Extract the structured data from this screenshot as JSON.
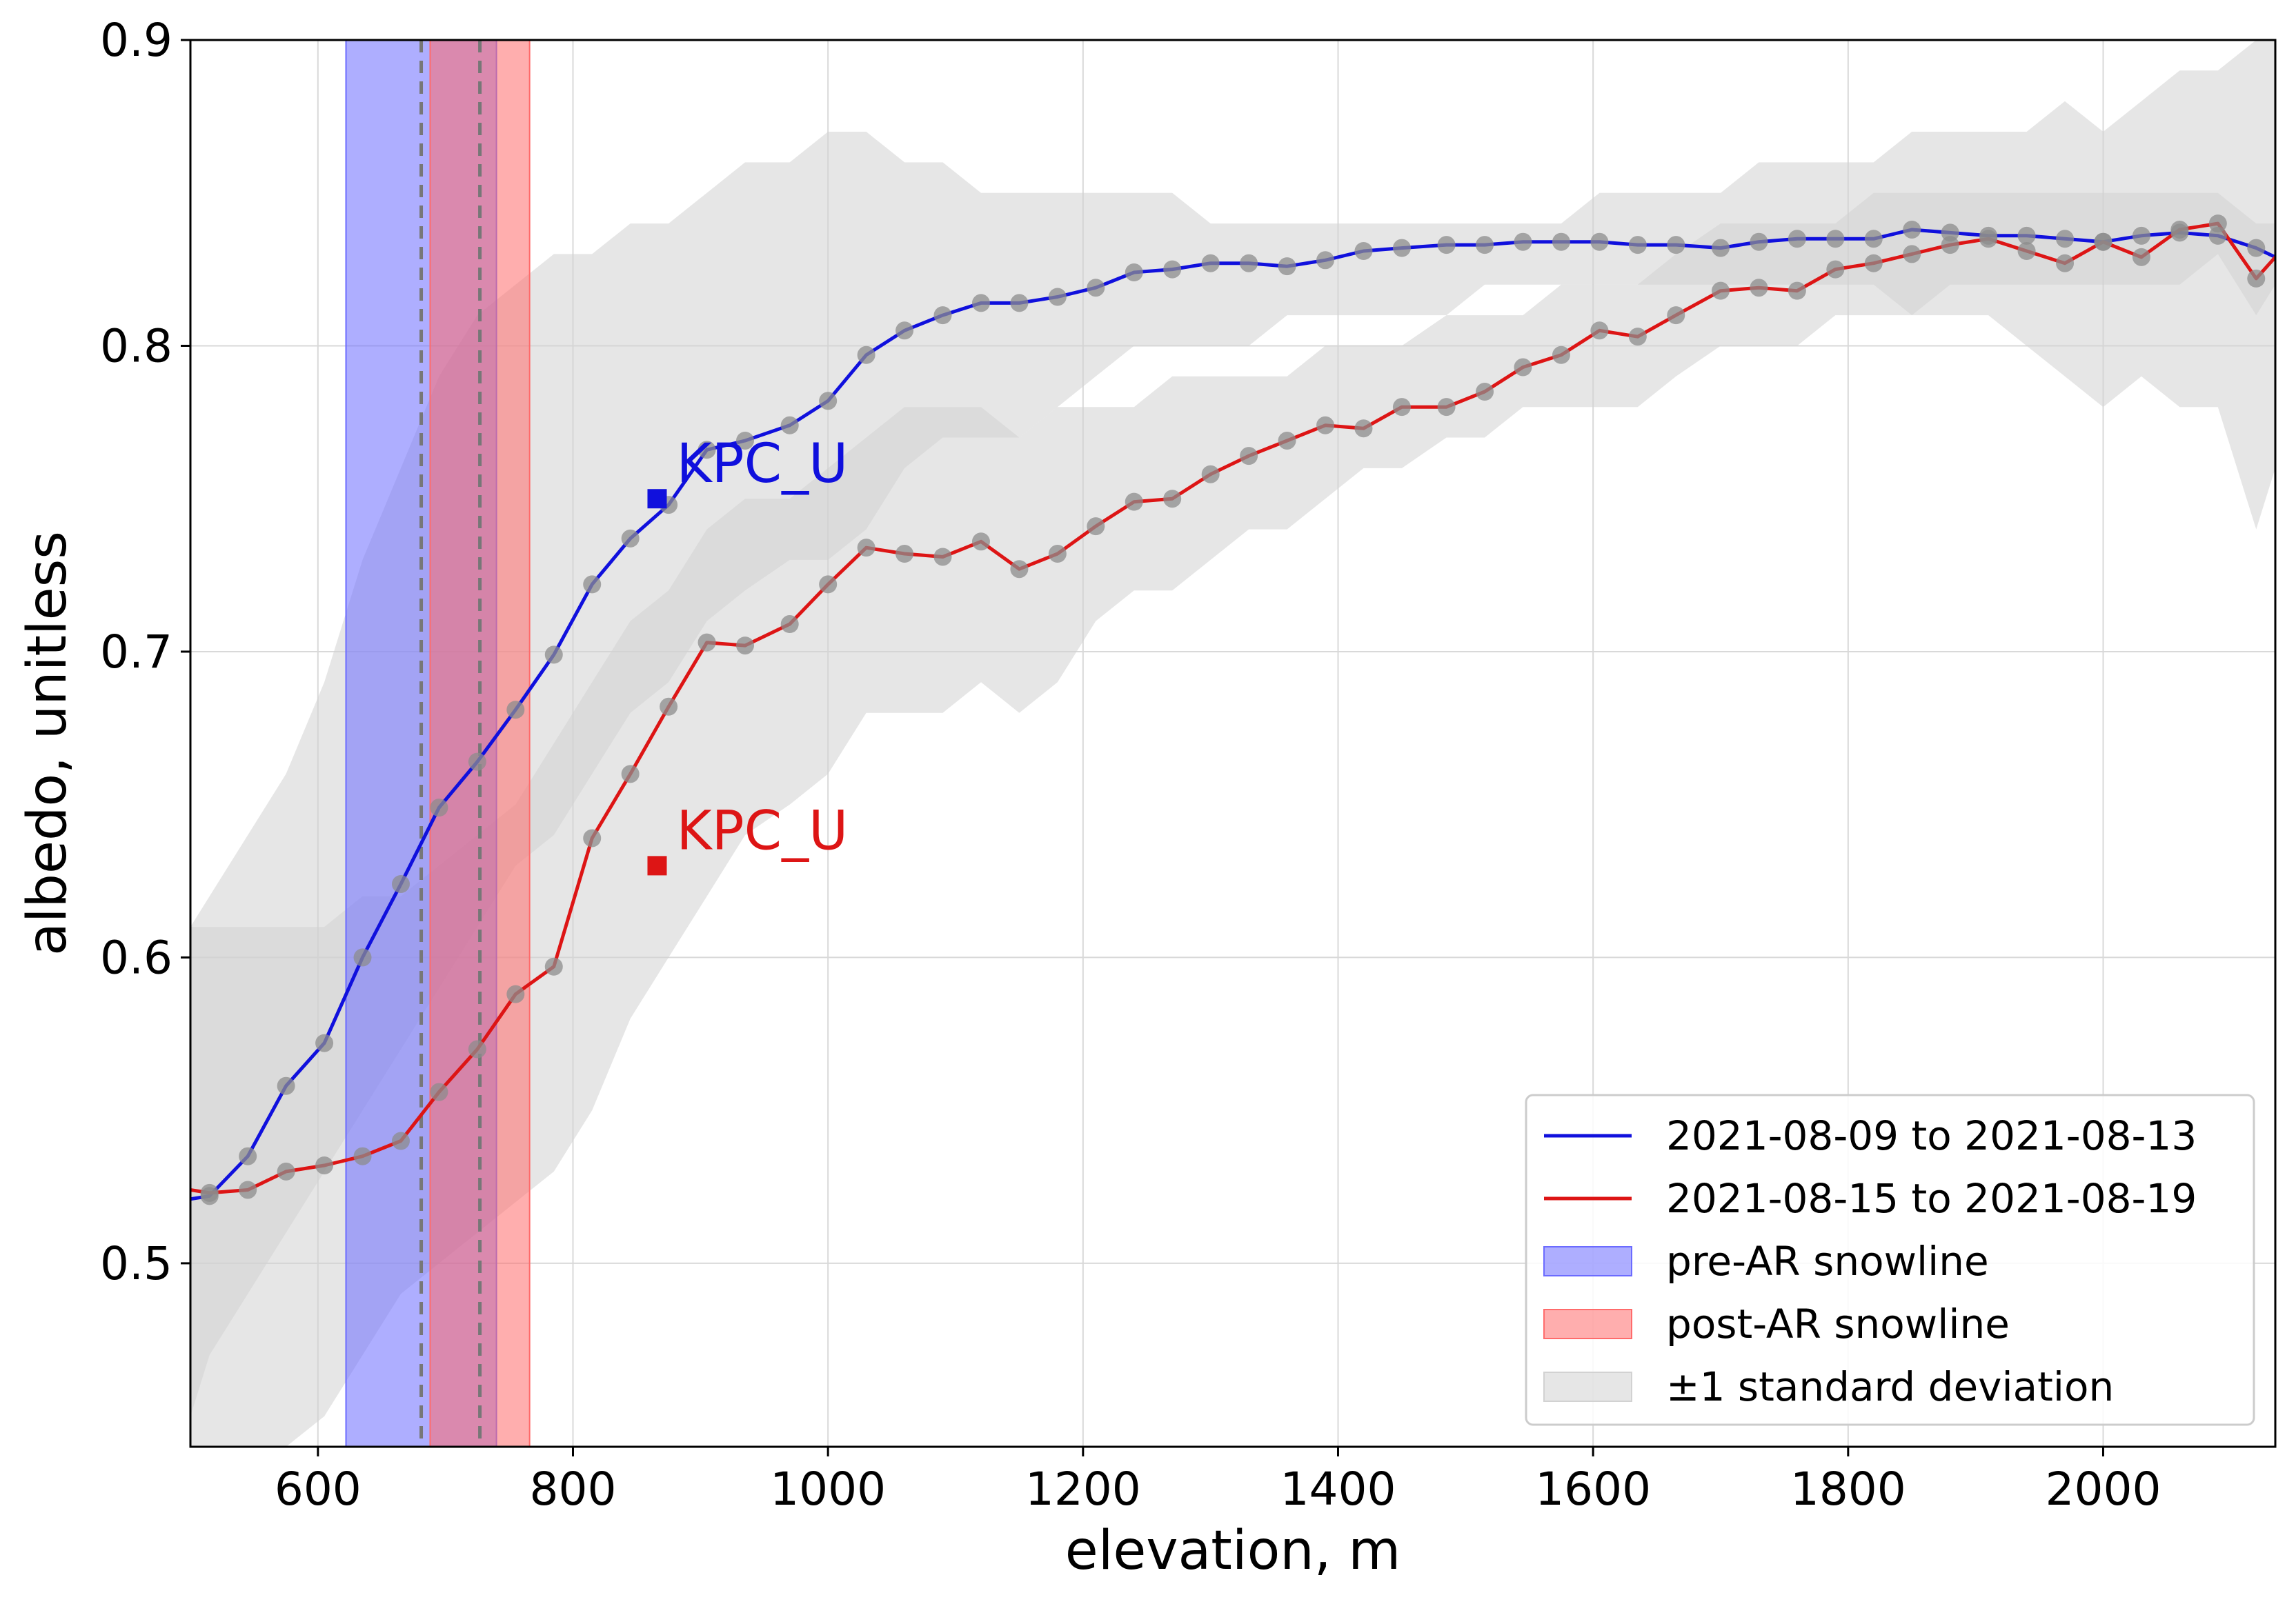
{
  "chart_data": {
    "type": "line",
    "xlabel": "elevation, m",
    "ylabel": "albedo, unitless",
    "xlim": [
      500,
      2135
    ],
    "ylim": [
      0.44,
      0.9
    ],
    "xticks": [
      600,
      800,
      1000,
      1200,
      1400,
      1600,
      1800,
      2000
    ],
    "yticks": [
      0.5,
      0.6,
      0.7,
      0.8,
      0.9
    ],
    "ytick_labels": [
      "0.5",
      "0.6",
      "0.7",
      "0.8",
      "0.9"
    ],
    "grid": true,
    "legend_location": "lower-right",
    "series": [
      {
        "name": "2021-08-09 to 2021-08-13",
        "color": "#1010dd",
        "x": [
          500,
          515,
          545,
          575,
          605,
          635,
          665,
          695,
          725,
          755,
          785,
          815,
          845,
          875,
          905,
          935,
          970,
          1000,
          1030,
          1060,
          1090,
          1120,
          1150,
          1180,
          1210,
          1240,
          1270,
          1300,
          1330,
          1360,
          1390,
          1420,
          1450,
          1485,
          1515,
          1545,
          1575,
          1605,
          1635,
          1665,
          1700,
          1730,
          1760,
          1790,
          1820,
          1850,
          1880,
          1910,
          1940,
          1970,
          2000,
          2030,
          2060,
          2090,
          2120,
          2135
        ],
        "y": [
          0.521,
          0.522,
          0.535,
          0.558,
          0.572,
          0.6,
          0.624,
          0.649,
          0.664,
          0.681,
          0.699,
          0.722,
          0.737,
          0.748,
          0.766,
          0.769,
          0.774,
          0.782,
          0.797,
          0.805,
          0.81,
          0.814,
          0.814,
          0.816,
          0.819,
          0.824,
          0.825,
          0.827,
          0.827,
          0.826,
          0.828,
          0.831,
          0.832,
          0.833,
          0.833,
          0.834,
          0.834,
          0.834,
          0.833,
          0.833,
          0.832,
          0.834,
          0.835,
          0.835,
          0.835,
          0.838,
          0.837,
          0.836,
          0.836,
          0.835,
          0.834,
          0.836,
          0.837,
          0.836,
          0.832,
          0.829
        ]
      },
      {
        "name": "2021-08-15 to 2021-08-19",
        "color": "#dd1515",
        "x": [
          500,
          515,
          545,
          575,
          605,
          635,
          665,
          695,
          725,
          755,
          785,
          815,
          845,
          875,
          905,
          935,
          970,
          1000,
          1030,
          1060,
          1090,
          1120,
          1150,
          1180,
          1210,
          1240,
          1270,
          1300,
          1330,
          1360,
          1390,
          1420,
          1450,
          1485,
          1515,
          1545,
          1575,
          1605,
          1635,
          1665,
          1700,
          1730,
          1760,
          1790,
          1820,
          1850,
          1880,
          1910,
          1940,
          1970,
          2000,
          2030,
          2060,
          2090,
          2120,
          2135
        ],
        "y": [
          0.524,
          0.523,
          0.524,
          0.53,
          0.532,
          0.535,
          0.54,
          0.556,
          0.57,
          0.588,
          0.597,
          0.639,
          0.66,
          0.682,
          0.703,
          0.702,
          0.709,
          0.722,
          0.734,
          0.732,
          0.731,
          0.736,
          0.727,
          0.732,
          0.741,
          0.749,
          0.75,
          0.758,
          0.764,
          0.769,
          0.774,
          0.773,
          0.78,
          0.78,
          0.785,
          0.793,
          0.797,
          0.805,
          0.803,
          0.81,
          0.818,
          0.819,
          0.818,
          0.825,
          0.827,
          0.83,
          0.833,
          0.835,
          0.831,
          0.827,
          0.834,
          0.829,
          0.838,
          0.84,
          0.822,
          0.829
        ]
      }
    ],
    "bands": [
      {
        "name": "±1 standard deviation",
        "color": "#d2d2d2",
        "x": [
          500,
          515,
          545,
          575,
          605,
          635,
          665,
          695,
          725,
          755,
          785,
          815,
          845,
          875,
          905,
          935,
          970,
          1000,
          1030,
          1060,
          1090,
          1120,
          1150,
          1180,
          1210,
          1240,
          1270,
          1300,
          1330,
          1360,
          1390,
          1420,
          1450,
          1485,
          1515,
          1545,
          1575,
          1605,
          1635,
          1665,
          1700,
          1730,
          1760,
          1790,
          1820,
          1850,
          1880,
          1910,
          1940,
          1970,
          2000,
          2030,
          2060,
          2090,
          2120,
          2135
        ],
        "lower": [
          0.45,
          0.47,
          0.49,
          0.51,
          0.53,
          0.55,
          0.57,
          0.59,
          0.61,
          0.63,
          0.64,
          0.66,
          0.68,
          0.69,
          0.71,
          0.72,
          0.73,
          0.73,
          0.74,
          0.76,
          0.77,
          0.77,
          0.77,
          0.78,
          0.79,
          0.8,
          0.8,
          0.8,
          0.8,
          0.81,
          0.81,
          0.81,
          0.81,
          0.81,
          0.82,
          0.82,
          0.82,
          0.82,
          0.82,
          0.82,
          0.82,
          0.82,
          0.82,
          0.82,
          0.82,
          0.81,
          0.81,
          0.81,
          0.8,
          0.79,
          0.78,
          0.79,
          0.78,
          0.78,
          0.74,
          0.76
        ],
        "upper": [
          0.61,
          0.62,
          0.64,
          0.66,
          0.69,
          0.73,
          0.76,
          0.79,
          0.81,
          0.82,
          0.83,
          0.83,
          0.84,
          0.84,
          0.85,
          0.86,
          0.86,
          0.87,
          0.87,
          0.86,
          0.86,
          0.85,
          0.85,
          0.85,
          0.85,
          0.85,
          0.85,
          0.84,
          0.84,
          0.84,
          0.84,
          0.84,
          0.84,
          0.84,
          0.84,
          0.84,
          0.84,
          0.85,
          0.85,
          0.85,
          0.85,
          0.86,
          0.86,
          0.86,
          0.86,
          0.87,
          0.87,
          0.87,
          0.87,
          0.88,
          0.87,
          0.88,
          0.89,
          0.89,
          0.9,
          0.91
        ]
      },
      {
        "name": "±1 standard deviation",
        "color": "#d2d2d2",
        "x": [
          500,
          515,
          545,
          575,
          605,
          635,
          665,
          695,
          725,
          755,
          785,
          815,
          845,
          875,
          905,
          935,
          970,
          1000,
          1030,
          1060,
          1090,
          1120,
          1150,
          1180,
          1210,
          1240,
          1270,
          1300,
          1330,
          1360,
          1390,
          1420,
          1450,
          1485,
          1515,
          1545,
          1575,
          1605,
          1635,
          1665,
          1700,
          1730,
          1760,
          1790,
          1820,
          1850,
          1880,
          1910,
          1940,
          1970,
          2000,
          2030,
          2060,
          2090,
          2120,
          2135
        ],
        "lower": [
          0.43,
          0.43,
          0.43,
          0.44,
          0.45,
          0.47,
          0.49,
          0.5,
          0.51,
          0.52,
          0.53,
          0.55,
          0.58,
          0.6,
          0.62,
          0.64,
          0.65,
          0.66,
          0.68,
          0.68,
          0.68,
          0.69,
          0.68,
          0.69,
          0.71,
          0.72,
          0.72,
          0.73,
          0.74,
          0.74,
          0.75,
          0.76,
          0.76,
          0.77,
          0.77,
          0.78,
          0.78,
          0.78,
          0.78,
          0.79,
          0.8,
          0.8,
          0.8,
          0.81,
          0.81,
          0.81,
          0.82,
          0.82,
          0.82,
          0.82,
          0.82,
          0.82,
          0.82,
          0.83,
          0.81,
          0.82
        ],
        "upper": [
          0.61,
          0.61,
          0.61,
          0.61,
          0.61,
          0.62,
          0.62,
          0.63,
          0.64,
          0.65,
          0.67,
          0.69,
          0.71,
          0.72,
          0.74,
          0.75,
          0.75,
          0.76,
          0.77,
          0.78,
          0.78,
          0.78,
          0.77,
          0.78,
          0.78,
          0.78,
          0.79,
          0.79,
          0.79,
          0.79,
          0.8,
          0.8,
          0.8,
          0.81,
          0.81,
          0.81,
          0.82,
          0.82,
          0.82,
          0.83,
          0.84,
          0.84,
          0.84,
          0.84,
          0.85,
          0.85,
          0.85,
          0.85,
          0.85,
          0.85,
          0.85,
          0.85,
          0.85,
          0.85,
          0.84,
          0.84
        ]
      }
    ],
    "vertical_spans": [
      {
        "name": "pre-AR snowline",
        "x_range": [
          622,
          740
        ],
        "color": "#6b6bff",
        "dashed_line_x": 681
      },
      {
        "name": "post-AR snowline",
        "x_range": [
          688,
          766
        ],
        "color": "#ff6b6b",
        "dashed_line_x": 727
      }
    ],
    "annotations": [
      {
        "text": "KPC_U",
        "x": 866,
        "y": 0.75,
        "color": "#1010dd"
      },
      {
        "text": "KPC_U",
        "x": 866,
        "y": 0.63,
        "color": "#dd1515"
      }
    ],
    "legend": [
      {
        "label": "2021-08-09 to 2021-08-13",
        "kind": "line",
        "color": "#1010dd"
      },
      {
        "label": "2021-08-15 to 2021-08-19",
        "kind": "line",
        "color": "#dd1515"
      },
      {
        "label": "pre-AR snowline",
        "kind": "patch",
        "color": "#6b6bff"
      },
      {
        "label": "post-AR snowline",
        "kind": "patch",
        "color": "#ff6b6b"
      },
      {
        "label": "±1 standard deviation",
        "kind": "patch",
        "color": "#d2d2d2"
      }
    ]
  }
}
